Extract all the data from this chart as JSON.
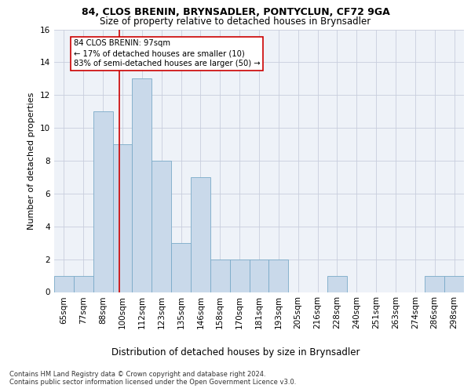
{
  "title1": "84, CLOS BRENIN, BRYNSADLER, PONTYCLUN, CF72 9GA",
  "title2": "Size of property relative to detached houses in Brynsadler",
  "xlabel": "Distribution of detached houses by size in Brynsadler",
  "ylabel": "Number of detached properties",
  "categories": [
    "65sqm",
    "77sqm",
    "88sqm",
    "100sqm",
    "112sqm",
    "123sqm",
    "135sqm",
    "146sqm",
    "158sqm",
    "170sqm",
    "181sqm",
    "193sqm",
    "205sqm",
    "216sqm",
    "228sqm",
    "240sqm",
    "251sqm",
    "263sqm",
    "274sqm",
    "286sqm",
    "298sqm"
  ],
  "values": [
    1,
    1,
    11,
    9,
    13,
    8,
    3,
    7,
    2,
    2,
    2,
    2,
    0,
    0,
    1,
    0,
    0,
    0,
    0,
    1,
    1
  ],
  "bar_color": "#c9d9ea",
  "bar_edge_color": "#7aaac8",
  "vline_x_index": 2.82,
  "vline_color": "#cc0000",
  "annotation_line1": "84 CLOS BRENIN: 97sqm",
  "annotation_line2": "← 17% of detached houses are smaller (10)",
  "annotation_line3": "83% of semi-detached houses are larger (50) →",
  "annotation_box_color": "#ffffff",
  "annotation_box_edge": "#cc0000",
  "ylim": [
    0,
    16
  ],
  "yticks": [
    0,
    2,
    4,
    6,
    8,
    10,
    12,
    14,
    16
  ],
  "footer1": "Contains HM Land Registry data © Crown copyright and database right 2024.",
  "footer2": "Contains public sector information licensed under the Open Government Licence v3.0.",
  "bg_color": "#eef2f8",
  "grid_color": "#c8cedd",
  "title1_fontsize": 9.0,
  "title2_fontsize": 8.5,
  "ylabel_fontsize": 8.0,
  "xlabel_fontsize": 8.5,
  "tick_fontsize": 7.5,
  "footer_fontsize": 6.0
}
